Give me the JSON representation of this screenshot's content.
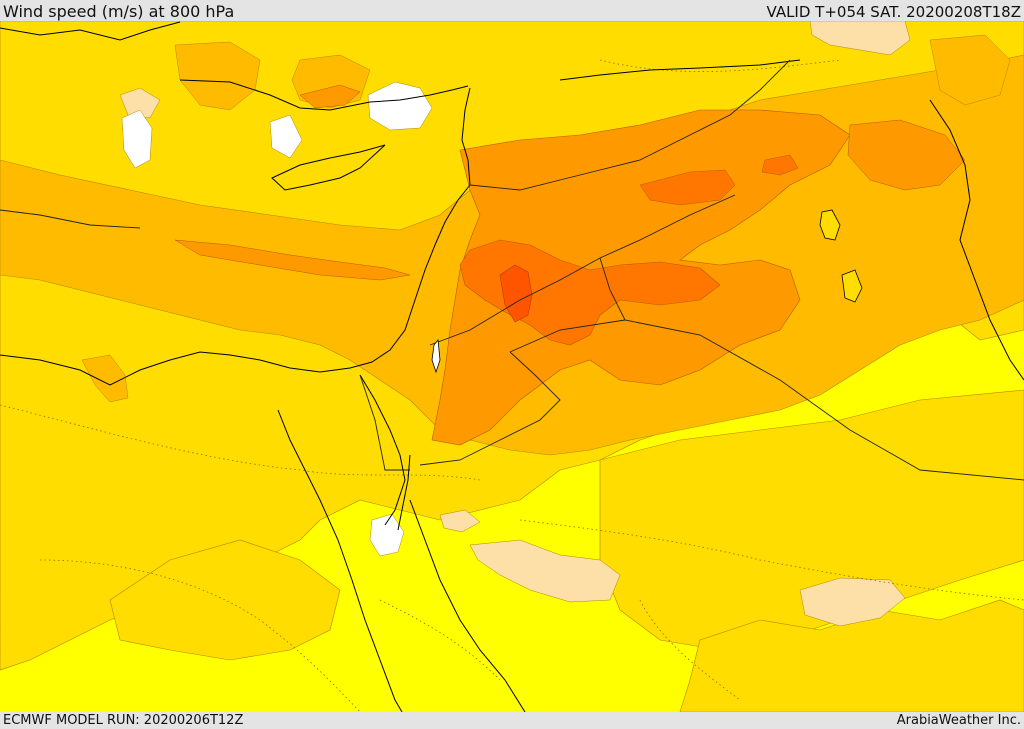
{
  "header": {
    "title": "Wind speed (m/s) at 800 hPa",
    "valid": "VALID T+054 SAT. 20200208T18Z"
  },
  "footer": {
    "run": "ECMWF MODEL RUN: 20200206T12Z",
    "credit": "ArabiaWeather Inc."
  },
  "map": {
    "variable": "wind speed",
    "units": "m/s",
    "level": "800 hPa",
    "colors": {
      "calm": "#ffffff",
      "light": "#fde0a8",
      "low": "#ffff00",
      "moderate": "#ffdd00",
      "fresh": "#ffbb00",
      "strong": "#ff9900",
      "very_strong": "#ff7700",
      "max": "#ff5500",
      "coastline": "#000000",
      "border": "#111111"
    }
  }
}
